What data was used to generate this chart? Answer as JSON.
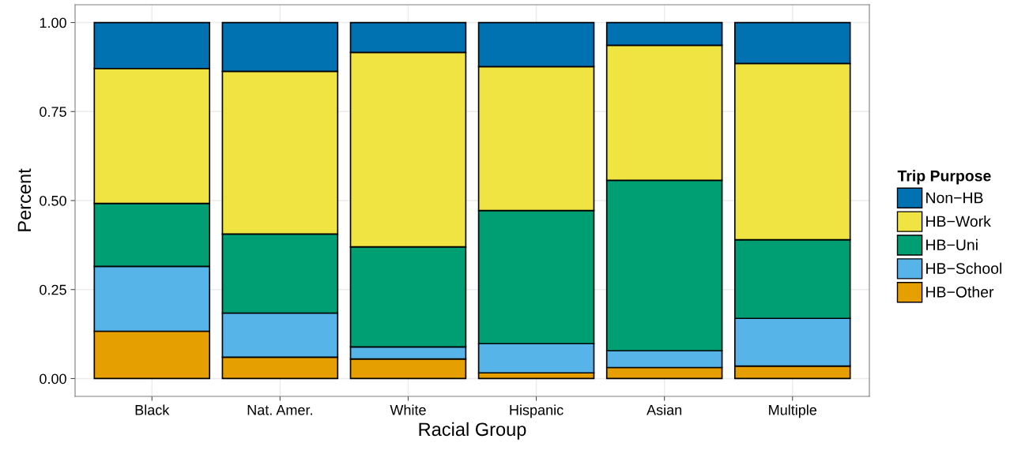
{
  "chart_data": {
    "type": "bar",
    "stacked": true,
    "xlabel": "Racial Group",
    "ylabel": "Percent",
    "legend_title": "Trip Purpose",
    "legend": "right",
    "categories": [
      "Black",
      "Nat. Amer.",
      "White",
      "Hispanic",
      "Asian",
      "Multiple"
    ],
    "series": [
      {
        "name": "HB−Other",
        "color": "#e69f00",
        "values": [
          0.133,
          0.06,
          0.055,
          0.016,
          0.031,
          0.035
        ]
      },
      {
        "name": "HB−School",
        "color": "#56b4e9",
        "values": [
          0.182,
          0.124,
          0.034,
          0.082,
          0.047,
          0.134
        ]
      },
      {
        "name": "HB−Uni",
        "color": "#009e73",
        "values": [
          0.177,
          0.222,
          0.281,
          0.374,
          0.479,
          0.221
        ]
      },
      {
        "name": "HB−Work",
        "color": "#f0e442",
        "values": [
          0.379,
          0.457,
          0.546,
          0.404,
          0.379,
          0.495
        ]
      },
      {
        "name": "Non−HB",
        "color": "#0072b2",
        "values": [
          0.129,
          0.137,
          0.084,
          0.124,
          0.064,
          0.115
        ]
      }
    ],
    "ylim": [
      -0.05,
      1.05
    ],
    "yticks": [
      {
        "value": 0,
        "label": "0.00"
      },
      {
        "value": 0.25,
        "label": "0.25"
      },
      {
        "value": 0.5,
        "label": "0.50"
      },
      {
        "value": 0.75,
        "label": "0.75"
      },
      {
        "value": 1,
        "label": "1.00"
      }
    ],
    "grid": true
  }
}
